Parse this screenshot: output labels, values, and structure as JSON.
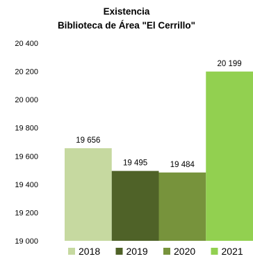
{
  "chart_data": {
    "type": "bar",
    "title": "Existencia",
    "subtitle": "Biblioteca de Área \"El Cerrillo\"",
    "categories": [
      "2018",
      "2019",
      "2020",
      "2021"
    ],
    "series": [
      {
        "name": "2018",
        "values": [
          19656,
          null,
          null,
          null
        ],
        "color": "#c6d9a0",
        "label": "19 656"
      },
      {
        "name": "2019",
        "values": [
          null,
          19495,
          null,
          null
        ],
        "color": "#4f6228",
        "label": "19 495"
      },
      {
        "name": "2020",
        "values": [
          null,
          null,
          19484,
          null
        ],
        "color": "#77933c",
        "label": "19 484"
      },
      {
        "name": "2021",
        "values": [
          null,
          null,
          null,
          20199
        ],
        "color": "#92d050",
        "label": "20 199"
      }
    ],
    "values": [
      19656,
      19495,
      19484,
      20199
    ],
    "ylim": [
      19000,
      20400
    ],
    "yticks": [
      19000,
      19200,
      19400,
      19600,
      19800,
      20000,
      20200,
      20400
    ],
    "ytick_labels": [
      "19 000",
      "19 200",
      "19 400",
      "19 600",
      "19 800",
      "20 000",
      "20 200",
      "20 400"
    ],
    "grid": false,
    "legend": "bottom",
    "xlabel": "",
    "ylabel": ""
  }
}
